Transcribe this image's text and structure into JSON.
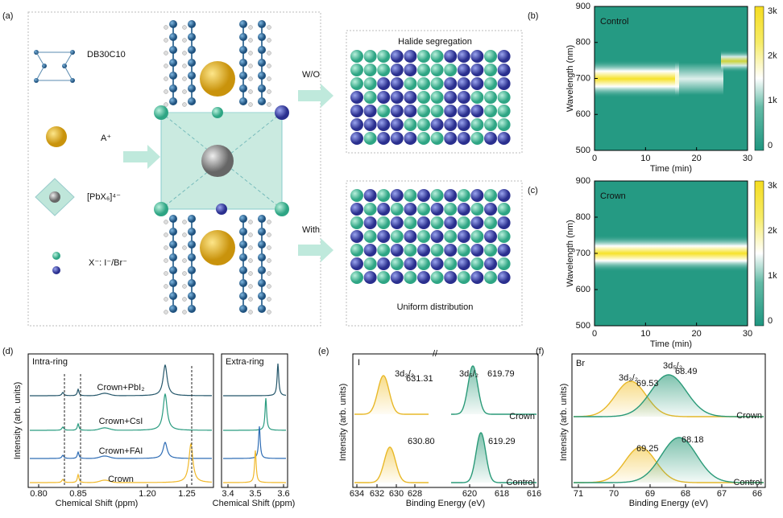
{
  "figure": {
    "a": {
      "label": "(a)",
      "molecule": "DB30C10",
      "cation": "A⁺",
      "octahedron": "[PbX₆]⁴⁻",
      "halide": "X⁻: I⁻/Br⁻",
      "without": "W/O",
      "with": "With",
      "top_box": "Halide segregation",
      "bottom_box": "Uniform distribution"
    },
    "b": {
      "label": "(b)",
      "sample": "Control",
      "y_axis": "Wavelength (nm)",
      "x_axis": "Time (min)",
      "yticks": [
        "900",
        "800",
        "700",
        "600",
        "500"
      ],
      "xticks": [
        "0",
        "10",
        "20",
        "30"
      ],
      "colorbar_ticks": [
        "3k",
        "2k",
        "1k",
        "0"
      ]
    },
    "c": {
      "label": "(c)",
      "sample": "Crown",
      "y_axis": "Wavelength (nm)",
      "x_axis": "Time (min)",
      "yticks": [
        "900",
        "800",
        "700",
        "600",
        "500"
      ],
      "xticks": [
        "0",
        "10",
        "20",
        "30"
      ],
      "colorbar_ticks": [
        "3k",
        "2k",
        "1k",
        "0"
      ]
    },
    "d": {
      "label": "(d)",
      "y_axis": "Intensity (arb. units)",
      "left_title": "Intra-ring",
      "right_title": "Extra-ring",
      "left_x_axis": "Chemical Shift (ppm)",
      "right_x_axis": "Chemical Shift (ppm)",
      "left_xticks": [
        "0.80",
        "0.85",
        "1.20",
        "1.25"
      ],
      "right_xticks": [
        "3.4",
        "3.5",
        "3.6"
      ],
      "traces": [
        "Crown+PbI₂",
        "Crown+CsI",
        "Crown+FAI",
        "Crown"
      ]
    },
    "e": {
      "label": "(e)",
      "element": "I",
      "y_axis": "Intensity (arb. units)",
      "x_axis": "Binding Energy (eV)",
      "xticks": [
        "634",
        "632",
        "630",
        "628",
        "620",
        "618",
        "616"
      ],
      "crown": {
        "name": "Crown",
        "peak1_label": "3d₃/₂",
        "peak1": "631.31",
        "peak2_label": "3d₅/₂",
        "peak2": "619.79"
      },
      "control": {
        "name": "Control",
        "peak1": "630.80",
        "peak2": "619.29"
      }
    },
    "f": {
      "label": "(f)",
      "element": "Br",
      "y_axis": "Intensity (arb. units)",
      "x_axis": "Binding Energy (eV)",
      "xticks": [
        "71",
        "70",
        "69",
        "68",
        "67",
        "66"
      ],
      "crown": {
        "name": "Crown",
        "peak1_label": "3d₃/₂",
        "peak1": "69.53",
        "peak2_label": "3d₅/₂",
        "peak2": "68.49"
      },
      "control": {
        "name": "Control",
        "peak1": "69.25",
        "peak2": "68.18"
      }
    }
  }
}
